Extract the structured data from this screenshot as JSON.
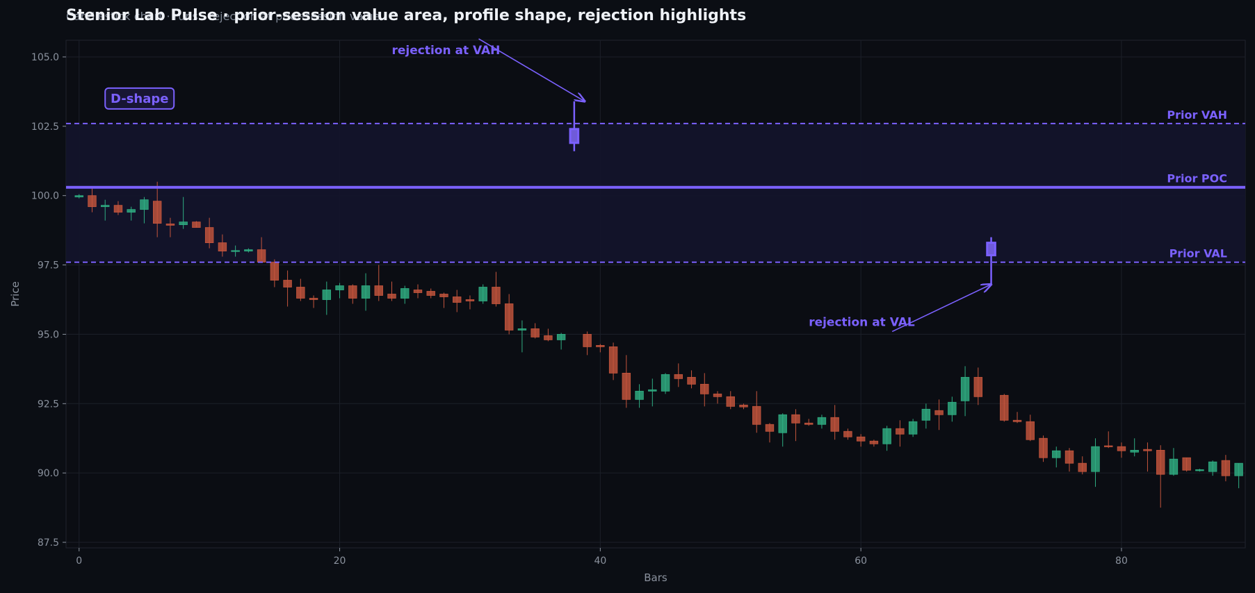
{
  "chart_data": {
    "type": "candlestick",
    "title": "Stenior Lab Pulse · prior-session value area, profile shape, rejection highlights",
    "subtitle": "Candlestick chart · runs · rejection at prior-session value",
    "xlabel": "Bars",
    "ylabel": "Price",
    "xlim": [
      -1,
      89.5
    ],
    "ylim": [
      87.3,
      105.6
    ],
    "x_ticks": [
      0,
      20,
      40,
      60,
      80
    ],
    "y_ticks": [
      87.5,
      90.0,
      92.5,
      95.0,
      97.5,
      100.0,
      102.5,
      105.0
    ],
    "grid": true,
    "levels": [
      {
        "name": "Prior VAH",
        "value": 102.6,
        "style": "dashed"
      },
      {
        "name": "Prior POC",
        "value": 100.3,
        "style": "solid"
      },
      {
        "name": "Prior VAL",
        "value": 97.6,
        "style": "dashed"
      }
    ],
    "value_area": [
      97.6,
      102.6
    ],
    "profile_shape_label": "D-shape",
    "annotations": [
      {
        "text": "rejection at VAH",
        "text_x": 24,
        "text_y": 105.1,
        "arrow_x": 38.8,
        "arrow_y": 103.4
      },
      {
        "text": "rejection at VAL",
        "text_x": 56,
        "text_y": 95.3,
        "arrow_x": 70,
        "arrow_y": 96.8
      }
    ],
    "highlighted_bars": [
      38,
      70
    ],
    "candles": [
      [
        99.95,
        100.05,
        99.9,
        100.0
      ],
      [
        100.0,
        100.3,
        99.4,
        99.6
      ],
      [
        99.6,
        99.85,
        99.1,
        99.65
      ],
      [
        99.65,
        99.8,
        99.3,
        99.4
      ],
      [
        99.4,
        99.6,
        99.1,
        99.5
      ],
      [
        99.5,
        99.95,
        99.0,
        99.85
      ],
      [
        99.8,
        100.5,
        98.5,
        99.0
      ],
      [
        98.98,
        99.2,
        98.5,
        98.93
      ],
      [
        98.95,
        99.95,
        98.8,
        99.05
      ],
      [
        99.05,
        99.08,
        98.85,
        98.85
      ],
      [
        98.85,
        99.2,
        98.1,
        98.3
      ],
      [
        98.3,
        98.6,
        97.8,
        98.0
      ],
      [
        98.0,
        98.2,
        97.8,
        98.02
      ],
      [
        98.0,
        98.1,
        97.95,
        98.05
      ],
      [
        98.05,
        98.5,
        97.7,
        97.6
      ],
      [
        97.6,
        97.7,
        96.7,
        96.95
      ],
      [
        96.95,
        97.3,
        96.0,
        96.7
      ],
      [
        96.7,
        97.0,
        96.2,
        96.3
      ],
      [
        96.3,
        96.4,
        95.95,
        96.25
      ],
      [
        96.25,
        96.9,
        95.7,
        96.6
      ],
      [
        96.6,
        96.85,
        96.3,
        96.75
      ],
      [
        96.75,
        96.8,
        96.1,
        96.3
      ],
      [
        96.3,
        97.2,
        95.85,
        96.75
      ],
      [
        96.75,
        97.5,
        96.2,
        96.4
      ],
      [
        96.45,
        96.9,
        96.2,
        96.3
      ],
      [
        96.3,
        96.75,
        96.1,
        96.65
      ],
      [
        96.6,
        96.8,
        96.3,
        96.5
      ],
      [
        96.55,
        96.65,
        96.3,
        96.4
      ],
      [
        96.45,
        96.5,
        95.95,
        96.35
      ],
      [
        96.35,
        96.6,
        95.8,
        96.15
      ],
      [
        96.25,
        96.4,
        95.9,
        96.2
      ],
      [
        96.2,
        96.8,
        96.1,
        96.7
      ],
      [
        96.7,
        97.25,
        96.0,
        96.1
      ],
      [
        96.1,
        96.45,
        95.0,
        95.15
      ],
      [
        95.15,
        95.5,
        94.35,
        95.2
      ],
      [
        95.2,
        95.4,
        94.85,
        94.9
      ],
      [
        94.95,
        95.2,
        94.75,
        94.8
      ],
      [
        94.8,
        95.05,
        94.45,
        95.0
      ],
      [
        101.9,
        103.4,
        101.6,
        102.4
      ],
      [
        95.0,
        95.1,
        94.25,
        94.55
      ],
      [
        94.6,
        94.65,
        94.35,
        94.55
      ],
      [
        94.55,
        94.7,
        93.35,
        93.6
      ],
      [
        93.6,
        94.25,
        92.35,
        92.65
      ],
      [
        92.65,
        93.2,
        92.35,
        92.95
      ],
      [
        92.95,
        93.4,
        92.4,
        93.0
      ],
      [
        92.95,
        93.6,
        92.85,
        93.55
      ],
      [
        93.55,
        93.95,
        93.1,
        93.4
      ],
      [
        93.45,
        93.7,
        93.05,
        93.2
      ],
      [
        93.2,
        93.6,
        92.4,
        92.85
      ],
      [
        92.85,
        92.95,
        92.5,
        92.75
      ],
      [
        92.75,
        92.95,
        92.3,
        92.4
      ],
      [
        92.45,
        92.5,
        92.3,
        92.38
      ],
      [
        92.4,
        92.95,
        91.45,
        91.75
      ],
      [
        91.75,
        91.8,
        91.1,
        91.5
      ],
      [
        91.45,
        92.15,
        90.95,
        92.1
      ],
      [
        92.1,
        92.3,
        91.15,
        91.8
      ],
      [
        91.8,
        91.95,
        91.7,
        91.75
      ],
      [
        91.75,
        92.1,
        91.6,
        92.0
      ],
      [
        92.0,
        92.45,
        91.2,
        91.5
      ],
      [
        91.5,
        91.6,
        91.2,
        91.3
      ],
      [
        91.3,
        91.4,
        90.95,
        91.15
      ],
      [
        91.15,
        91.2,
        90.95,
        91.05
      ],
      [
        91.05,
        91.7,
        90.8,
        91.6
      ],
      [
        91.6,
        91.9,
        90.95,
        91.4
      ],
      [
        91.4,
        91.95,
        91.3,
        91.85
      ],
      [
        91.9,
        92.5,
        91.6,
        92.3
      ],
      [
        92.25,
        92.65,
        91.55,
        92.1
      ],
      [
        92.1,
        92.75,
        91.85,
        92.55
      ],
      [
        92.6,
        93.85,
        92.05,
        93.45
      ],
      [
        93.45,
        93.8,
        92.45,
        92.75
      ],
      [
        97.85,
        98.5,
        96.8,
        98.3
      ],
      [
        92.8,
        92.85,
        91.85,
        91.9
      ],
      [
        91.9,
        92.2,
        91.8,
        91.85
      ],
      [
        91.85,
        92.1,
        91.15,
        91.2
      ],
      [
        91.25,
        91.35,
        90.4,
        90.55
      ],
      [
        90.55,
        90.95,
        90.2,
        90.8
      ],
      [
        90.8,
        90.9,
        90.05,
        90.35
      ],
      [
        90.35,
        90.6,
        89.95,
        90.05
      ],
      [
        90.05,
        91.25,
        89.5,
        90.95
      ],
      [
        90.98,
        91.5,
        90.9,
        90.95
      ],
      [
        90.95,
        91.1,
        90.55,
        90.8
      ],
      [
        90.75,
        91.25,
        90.6,
        90.82
      ],
      [
        90.85,
        91.1,
        90.05,
        90.8
      ],
      [
        90.82,
        91.0,
        88.75,
        89.95
      ],
      [
        89.95,
        90.9,
        89.9,
        90.5
      ],
      [
        90.55,
        90.55,
        90.05,
        90.1
      ],
      [
        90.08,
        90.15,
        90.05,
        90.12
      ],
      [
        90.05,
        90.45,
        89.9,
        90.4
      ],
      [
        90.45,
        90.65,
        89.7,
        89.9
      ],
      [
        89.9,
        90.35,
        89.45,
        90.35
      ]
    ]
  },
  "colors": {
    "background": "#0b0e14",
    "plot_background": "#0b0d13",
    "grid": "#1c2029",
    "axis_text": "#8b929e",
    "value_area_fill": "#13142a",
    "accent": "#7b61ff",
    "up": "#2fae83",
    "down": "#c5553d",
    "highlight_fill": "#6f5bd9"
  }
}
